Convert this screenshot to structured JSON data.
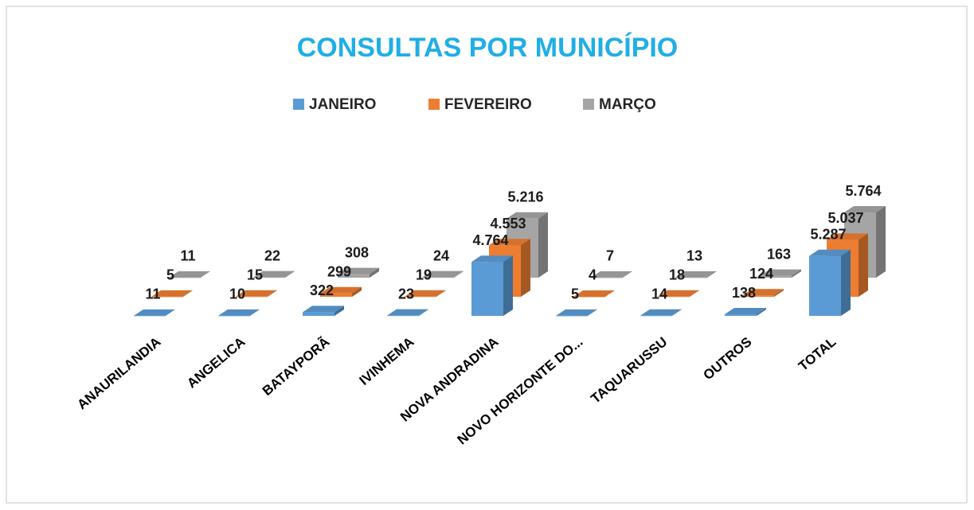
{
  "chart_data": {
    "type": "bar3d",
    "title": "CONSULTAS POR MUNICÍPIO",
    "categories": [
      "ANAURILANDIA",
      "ANGELICA",
      "BATAYPORÃ",
      "IVINHEMA",
      "NOVA ANDRADINA",
      "NOVO HORIZONTE DO...",
      "TAQUARUSSU",
      "OUTROS",
      "TOTAL"
    ],
    "legend": "top",
    "series": [
      {
        "name": "JANEIRO",
        "color": "#5b9bd5",
        "values": [
          11,
          10,
          322,
          23,
          4764,
          5,
          14,
          138,
          5287
        ],
        "value_labels": [
          "11",
          "10",
          "322",
          "23",
          "4.764",
          "5",
          "14",
          "138",
          "5.287"
        ]
      },
      {
        "name": "FEVEREIRO",
        "color": "#ed7d31",
        "values": [
          5,
          15,
          299,
          19,
          4553,
          4,
          18,
          124,
          5037
        ],
        "value_labels": [
          "5",
          "15",
          "299",
          "19",
          "4.553",
          "4",
          "18",
          "124",
          "5.037"
        ]
      },
      {
        "name": "MARÇO",
        "color": "#a5a5a5",
        "values": [
          11,
          22,
          308,
          24,
          5216,
          7,
          13,
          163,
          5764
        ],
        "value_labels": [
          "11",
          "22",
          "308",
          "24",
          "5.216",
          "7",
          "13",
          "163",
          "5.764"
        ]
      }
    ]
  }
}
